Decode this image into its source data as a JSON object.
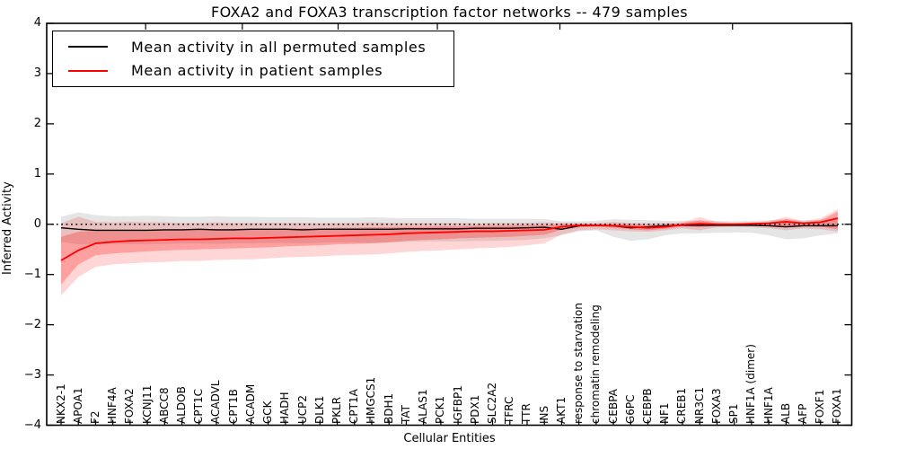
{
  "legend": {
    "entries": [
      {
        "label": "Mean activity in all permuted samples",
        "color": "#000000"
      },
      {
        "label": "Mean activity in patient samples",
        "color": "#ff0000"
      }
    ]
  },
  "chart_data": {
    "type": "line",
    "title": "FOXA2 and FOXA3 transcription factor networks -- 479 samples",
    "xlabel": "Cellular Entities",
    "ylabel": "Inferred Activity",
    "ylim": [
      -4,
      4
    ],
    "grid": false,
    "legend_position": "upper left",
    "zero_line": {
      "style": "dotted",
      "color": "#000000",
      "y": 0
    },
    "yticks": [
      {
        "value": 4,
        "label": "4"
      },
      {
        "value": 3,
        "label": "3"
      },
      {
        "value": 2,
        "label": "2"
      },
      {
        "value": 1,
        "label": "1"
      },
      {
        "value": 0,
        "label": "0"
      },
      {
        "value": -1,
        "label": "−1"
      },
      {
        "value": -2,
        "label": "−2"
      },
      {
        "value": -3,
        "label": "−3"
      },
      {
        "value": -4,
        "label": "−4"
      }
    ],
    "categories": [
      "NKX2-1",
      "APOA1",
      "F2",
      "HNF4A",
      "FOXA2",
      "KCNJ11",
      "ABCC8",
      "ALDOB",
      "CPT1C",
      "ACADVL",
      "CPT1B",
      "ACADM",
      "GCK",
      "HADH",
      "UCP2",
      "DLK1",
      "PKLR",
      "CPT1A",
      "HMGCS1",
      "BDH1",
      "TAT",
      "ALAS1",
      "PCK1",
      "IGFBP1",
      "PDX1",
      "SLC2A2",
      "TFRC",
      "TTR",
      "INS",
      "AKT1",
      "response to starvation",
      "chromatin remodeling",
      "CEBPA",
      "G6PC",
      "CEBPB",
      "NF1",
      "CREB1",
      "NR3C1",
      "FOXA3",
      "SP1",
      "HNF1A (dimer)",
      "HNF1A",
      "ALB",
      "AFP",
      "FOXF1",
      "FOXA1"
    ],
    "series": [
      {
        "name": "Mean activity in all permuted samples",
        "color": "#000000",
        "values": [
          -0.07,
          -0.1,
          -0.12,
          -0.12,
          -0.12,
          -0.12,
          -0.11,
          -0.11,
          -0.1,
          -0.11,
          -0.11,
          -0.1,
          -0.1,
          -0.1,
          -0.11,
          -0.1,
          -0.1,
          -0.1,
          -0.1,
          -0.1,
          -0.09,
          -0.09,
          -0.09,
          -0.09,
          -0.08,
          -0.08,
          -0.08,
          -0.07,
          -0.06,
          -0.1,
          -0.03,
          -0.02,
          -0.03,
          -0.07,
          -0.05,
          -0.03,
          -0.02,
          -0.02,
          -0.02,
          -0.02,
          -0.02,
          -0.03,
          -0.05,
          -0.03,
          -0.03,
          -0.03
        ]
      },
      {
        "name": "Mean activity in patient samples",
        "color": "#ff0000",
        "values": [
          -0.72,
          -0.52,
          -0.38,
          -0.35,
          -0.33,
          -0.32,
          -0.31,
          -0.3,
          -0.3,
          -0.29,
          -0.28,
          -0.28,
          -0.27,
          -0.26,
          -0.25,
          -0.24,
          -0.23,
          -0.22,
          -0.21,
          -0.2,
          -0.18,
          -0.17,
          -0.16,
          -0.15,
          -0.14,
          -0.14,
          -0.13,
          -0.12,
          -0.11,
          -0.05,
          -0.02,
          -0.02,
          -0.03,
          -0.05,
          -0.07,
          -0.05,
          -0.01,
          0.01,
          0.0,
          0.0,
          0.01,
          0.02,
          0.05,
          0.02,
          0.04,
          0.12
        ]
      }
    ],
    "bands": [
      {
        "name": "permuted-range",
        "color": "rgba(0,0,0,0.10)",
        "hi": [
          0.15,
          0.24,
          0.18,
          0.16,
          0.16,
          0.17,
          0.16,
          0.15,
          0.15,
          0.16,
          0.15,
          0.15,
          0.14,
          0.14,
          0.14,
          0.13,
          0.13,
          0.13,
          0.14,
          0.13,
          0.12,
          0.12,
          0.12,
          0.12,
          0.11,
          0.11,
          0.11,
          0.11,
          0.1,
          0.06,
          0.06,
          0.07,
          0.1,
          0.09,
          0.08,
          0.07,
          0.07,
          0.07,
          0.07,
          0.06,
          0.07,
          0.08,
          0.1,
          0.08,
          0.09,
          0.1
        ],
        "lo": [
          -0.35,
          -0.4,
          -0.4,
          -0.39,
          -0.4,
          -0.4,
          -0.39,
          -0.38,
          -0.38,
          -0.39,
          -0.38,
          -0.38,
          -0.37,
          -0.37,
          -0.38,
          -0.37,
          -0.36,
          -0.36,
          -0.37,
          -0.36,
          -0.35,
          -0.34,
          -0.34,
          -0.34,
          -0.33,
          -0.33,
          -0.32,
          -0.31,
          -0.28,
          -0.22,
          -0.14,
          -0.12,
          -0.25,
          -0.33,
          -0.3,
          -0.22,
          -0.18,
          -0.18,
          -0.17,
          -0.16,
          -0.17,
          -0.22,
          -0.3,
          -0.28,
          -0.22,
          -0.18
        ]
      },
      {
        "name": "patient-range-outer",
        "color": "rgba(255,0,0,0.16)",
        "hi": [
          0.02,
          0.15,
          0.05,
          0.04,
          0.05,
          0.04,
          0.04,
          0.03,
          0.03,
          0.04,
          0.03,
          0.03,
          0.03,
          0.03,
          0.03,
          0.02,
          0.03,
          0.03,
          0.04,
          0.03,
          0.03,
          0.03,
          0.03,
          0.03,
          0.02,
          0.03,
          0.03,
          0.03,
          0.04,
          0.03,
          0.03,
          0.03,
          0.05,
          0.03,
          0.02,
          0.03,
          0.04,
          0.14,
          0.05,
          0.03,
          0.04,
          0.06,
          0.15,
          0.06,
          0.12,
          0.3
        ],
        "lo": [
          -1.42,
          -1.05,
          -0.85,
          -0.8,
          -0.78,
          -0.76,
          -0.75,
          -0.73,
          -0.73,
          -0.71,
          -0.7,
          -0.7,
          -0.68,
          -0.66,
          -0.65,
          -0.64,
          -0.62,
          -0.61,
          -0.6,
          -0.58,
          -0.55,
          -0.53,
          -0.52,
          -0.5,
          -0.48,
          -0.47,
          -0.45,
          -0.42,
          -0.38,
          -0.2,
          -0.12,
          -0.1,
          -0.12,
          -0.14,
          -0.15,
          -0.12,
          -0.08,
          -0.12,
          -0.06,
          -0.05,
          -0.06,
          -0.08,
          -0.12,
          -0.08,
          -0.1,
          -0.15
        ]
      },
      {
        "name": "patient-range-inner",
        "color": "rgba(255,0,0,0.25)",
        "hi": [
          -0.25,
          -0.15,
          -0.12,
          -0.12,
          -0.11,
          -0.11,
          -0.1,
          -0.1,
          -0.1,
          -0.1,
          -0.09,
          -0.09,
          -0.09,
          -0.08,
          -0.08,
          -0.08,
          -0.07,
          -0.07,
          -0.06,
          -0.06,
          -0.05,
          -0.05,
          -0.04,
          -0.04,
          -0.03,
          -0.03,
          -0.03,
          -0.02,
          -0.02,
          0.0,
          0.0,
          0.0,
          0.01,
          0.0,
          -0.01,
          0.0,
          0.02,
          0.08,
          0.02,
          0.02,
          0.02,
          0.04,
          0.1,
          0.04,
          0.08,
          0.25
        ],
        "lo": [
          -1.2,
          -0.8,
          -0.62,
          -0.58,
          -0.56,
          -0.54,
          -0.52,
          -0.51,
          -0.5,
          -0.49,
          -0.48,
          -0.47,
          -0.46,
          -0.44,
          -0.43,
          -0.42,
          -0.4,
          -0.39,
          -0.38,
          -0.36,
          -0.33,
          -0.31,
          -0.3,
          -0.28,
          -0.27,
          -0.26,
          -0.25,
          -0.23,
          -0.21,
          -0.11,
          -0.06,
          -0.05,
          -0.07,
          -0.1,
          -0.12,
          -0.09,
          -0.04,
          -0.06,
          -0.03,
          -0.02,
          -0.03,
          -0.04,
          -0.07,
          -0.04,
          -0.05,
          -0.1
        ]
      }
    ]
  }
}
